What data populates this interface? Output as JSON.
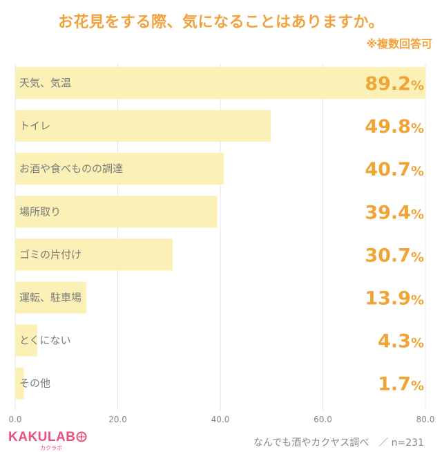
{
  "title": "お花見をする際、気になることはありますか。",
  "note": "※複数回答可",
  "footer": {
    "source": "なんでも酒やカクヤス調べ　／ n=231",
    "logo": "KAKULAB",
    "logo_sub": "カクラボ"
  },
  "colors": {
    "bar": "#fbf0b5",
    "accent": "#f0a436",
    "grid": "#e6e6e6",
    "logo": "#e8507c"
  },
  "chart_data": {
    "type": "bar",
    "orientation": "horizontal",
    "categories": [
      "天気、気温",
      "トイレ",
      "お酒や食べものの調達",
      "場所取り",
      "ゴミの片付け",
      "運転、駐車場",
      "とくにない",
      "その他"
    ],
    "values": [
      89.2,
      49.8,
      40.7,
      39.4,
      30.7,
      13.9,
      4.3,
      1.7
    ],
    "value_labels": [
      "89.2",
      "49.8",
      "40.7",
      "39.4",
      "30.7",
      "13.9",
      "4.3",
      "1.7"
    ],
    "unit": "%",
    "xlim": [
      0,
      80
    ],
    "xticks": [
      "0.0",
      "20.0",
      "40.0",
      "60.0",
      "80.0"
    ],
    "xtick_values": [
      0,
      20,
      40,
      60,
      80
    ],
    "grid": true
  }
}
